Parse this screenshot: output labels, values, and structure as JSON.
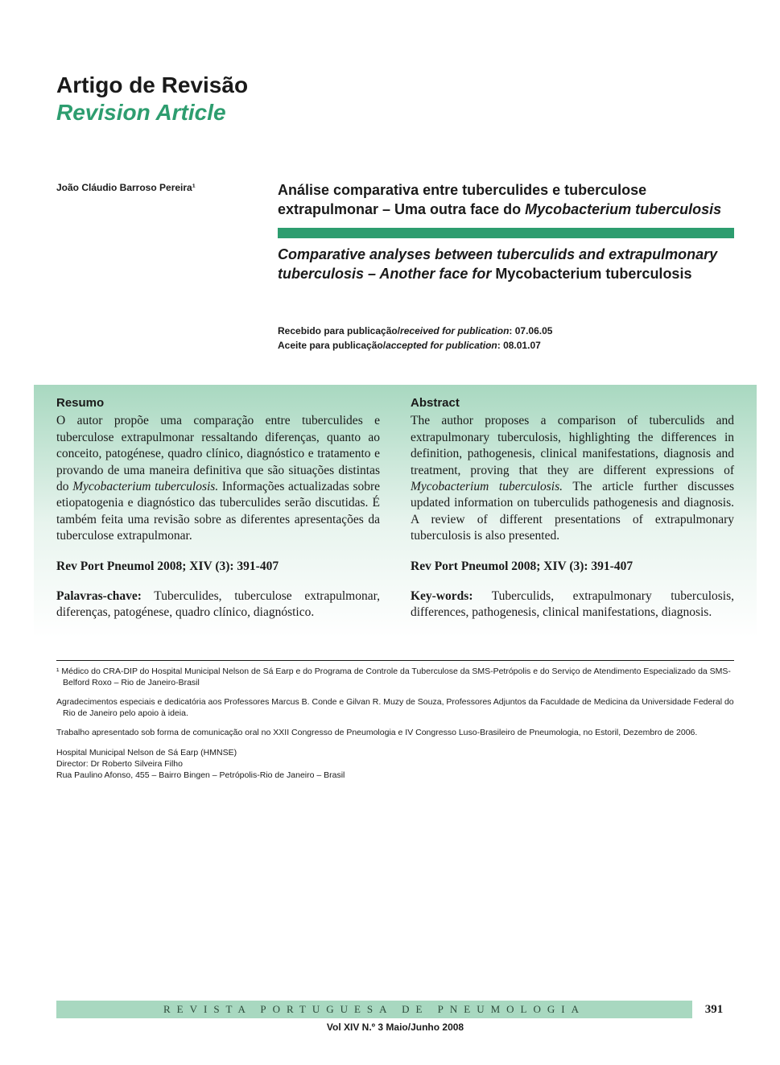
{
  "article_type": {
    "pt": "Artigo de Revisão",
    "en": "Revision Article"
  },
  "author": "João Cláudio Barroso Pereira¹",
  "title": {
    "pt_part1": "Análise comparativa entre tuberculides e tuberculose extrapulmonar – Uma outra face do ",
    "pt_species": "Mycobacterium tuberculosis",
    "en_part1": "Comparative analyses between tuberculids and extrapulmonary tuberculosis – Another face for",
    "en_species": " Mycobacterium tuberculosis"
  },
  "dates": {
    "received_label": "Recebido para publicação/",
    "received_label_en": "received for publication",
    "received_date": ": 07.06.05",
    "accepted_label": "Aceite para publicação/",
    "accepted_label_en": "accepted for publication",
    "accepted_date": ": 08.01.07"
  },
  "resumo": {
    "heading": "Resumo",
    "body_part1": "O autor propõe uma comparação entre tuberculides e tuberculose extrapulmonar ressaltando diferenças, quanto ao conceito, patogénese, quadro clínico, diagnóstico e tratamento e provando de uma maneira definitiva que são situações distintas do ",
    "body_species": "Mycobacterium tuberculosis.",
    "body_part2": " Informações actualizadas sobre etiopatogenia e diagnóstico das tuberculides serão discutidas. É também feita uma revisão sobre as diferentes apresentações da tuberculose extrapulmonar.",
    "citation": "Rev Port Pneumol 2008; XIV (3): 391-407",
    "kw_label": "Palavras-chave:",
    "kw_text": " Tuberculides, tuberculose extrapulmonar, diferenças, patogénese, quadro clínico, diagnóstico."
  },
  "abstract": {
    "heading": "Abstract",
    "body_part1": "The author proposes a comparison of tuberculids and extrapulmonary tuberculosis, highlighting the differences in definition, pathogenesis, clinical manifestations, diagnosis and treatment, proving that they are different expressions of ",
    "body_species": "Mycobacterium tuberculosis.",
    "body_part2": " The article further discusses updated information on tuberculids pathogenesis and diagnosis. A review of different presentations of extrapulmonary tuberculosis is also presented.",
    "citation": "Rev Port Pneumol 2008; XIV (3): 391-407",
    "kw_label": "Key-words:",
    "kw_text": " Tuberculids, extrapulmonary tuberculosis, differences, pathogenesis, clinical manifestations, diagnosis."
  },
  "footer_notes": {
    "n1": "¹ Médico do CRA-DIP do Hospital Municipal Nelson de Sá Earp e do Programa de Controle da Tuberculose da SMS-Petrópolis e do Serviço de Atendimento Especializado da SMS-Belford Roxo – Rio de Janeiro-Brasil",
    "n2": "Agradecimentos especiais e dedicatória aos Professores Marcus B. Conde e Gilvan R. Muzy de Souza, Professores Adjuntos da Faculdade de Medicina da Universidade Federal do Rio de Janeiro pelo apoio à ideia.",
    "n3": "Trabalho apresentado sob forma de comunicação oral no XXII Congresso de Pneumologia e IV Congresso Luso-Brasileiro de Pneumologia, no Estoril, Dezembro de 2006.",
    "n4a": "Hospital Municipal Nelson de Sá Earp (HMNSE)",
    "n4b": "Director: Dr  Roberto  Silveira Filho",
    "n4c": "Rua Paulino Afonso, 455 – Bairro Bingen – Petrópolis-Rio de Janeiro – Brasil"
  },
  "page_footer": {
    "journal": "REVISTA PORTUGUESA DE PNEUMOLOGIA",
    "page_num": "391",
    "vol": "Vol XIV  N.º 3  Maio/Junho  2008"
  },
  "colors": {
    "accent_green": "#2d9d6f",
    "light_green": "#a8d8c0",
    "text": "#1a1a1a"
  }
}
